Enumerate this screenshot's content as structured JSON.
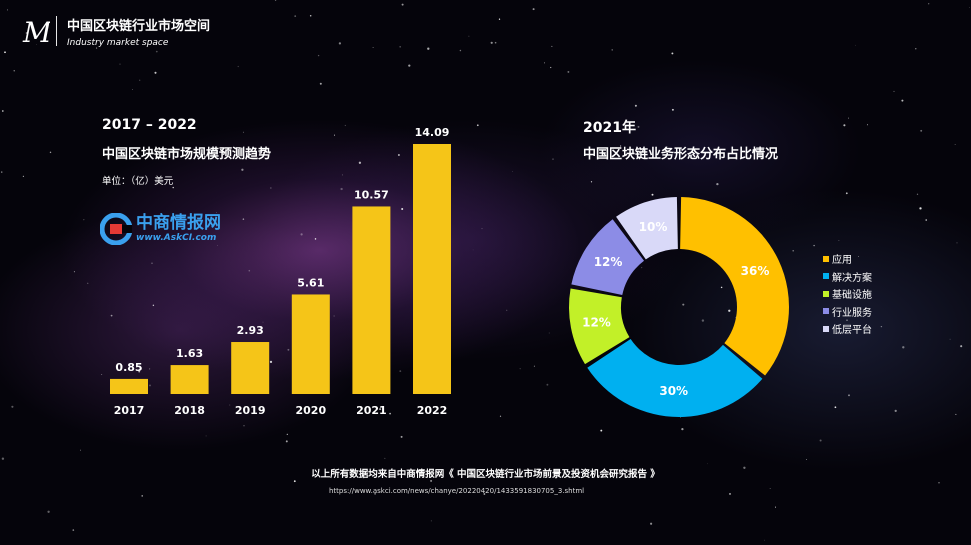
{
  "header": {
    "logo_letter": "M",
    "title": "中国区块链行业市场空间",
    "subtitle": "Industry market space"
  },
  "bar_chart": {
    "period": "2017 – 2022",
    "title": "中国区块链市场规模预测趋势",
    "unit": "单位：（亿）美元"
  },
  "watermark": {
    "name": "中商情报网",
    "site": "www.AskCI.com"
  },
  "donut_chart": {
    "year": "2021年",
    "title": "中国区块链业务形态分布占比情况"
  },
  "footer": {
    "source": "以上所有数据均来自中商情报网《 中国区块链行业市场前景及投资机会研究报告 》",
    "url": "https://www.askci.com/news/chanye/20220420/1433591830705_3.shtml"
  },
  "colors": {
    "bar": "#f5c518",
    "slices": [
      "#ffc000",
      "#00b0f0",
      "#c2f028",
      "#8c8ce6",
      "#d9d9f8"
    ],
    "slice_labels": [
      "#ffffff",
      "#ffffff",
      "#ffffff",
      "#ffffff",
      "#ffffff"
    ]
  },
  "chart_data": [
    {
      "type": "bar",
      "categories": [
        "2017",
        "2018",
        "2019",
        "2020",
        "2021",
        "2022"
      ],
      "values": [
        0.85,
        1.63,
        2.93,
        5.61,
        10.57,
        14.09
      ],
      "title": "中国区块链市场规模预测趋势",
      "ylabel": "单位：（亿）美元",
      "ylim": [
        0,
        14.09
      ],
      "grid": false
    },
    {
      "type": "pie",
      "donut": true,
      "categories": [
        "应用",
        "解决方案",
        "基础设施",
        "行业服务",
        "低层平台"
      ],
      "values": [
        36,
        30,
        12,
        12,
        10
      ],
      "value_labels": [
        "36%",
        "30%",
        "12%",
        "12%",
        "10%"
      ],
      "title": "中国区块链业务形态分布占比情况",
      "legend": "right"
    }
  ]
}
